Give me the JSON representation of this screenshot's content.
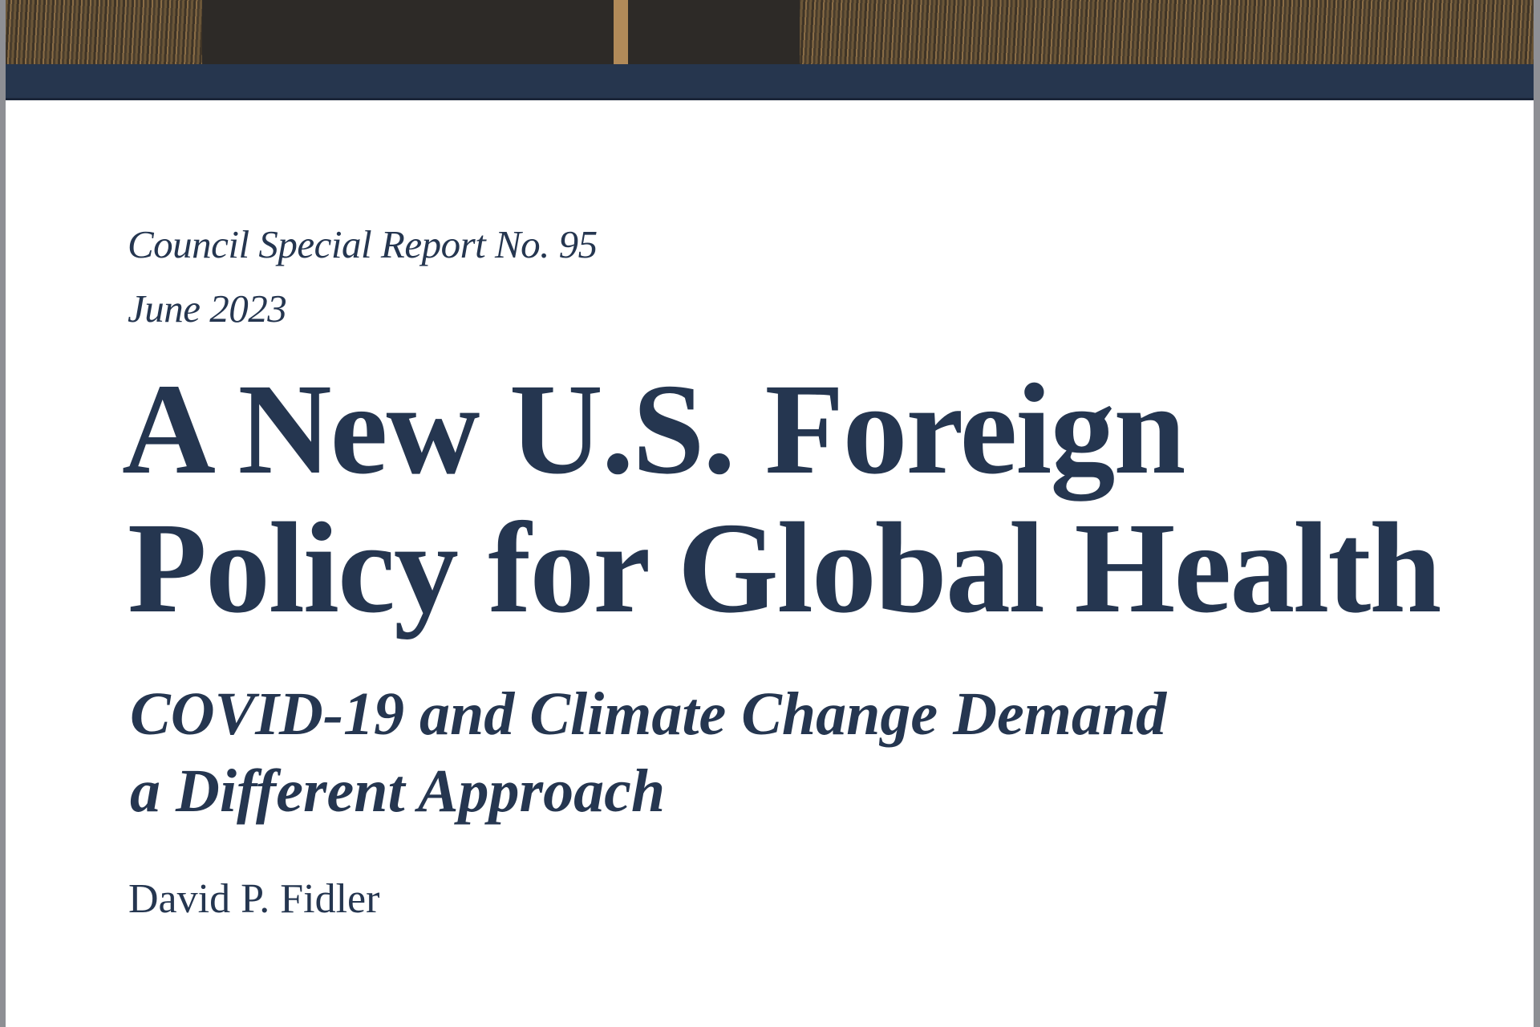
{
  "cover": {
    "series": "Council Special Report No. 95",
    "date": "June 2023",
    "title_line1": "A New U.S. Foreign",
    "title_line2": "Policy for Global Health",
    "subtitle_line1": "COVID-19 and Climate Change Demand",
    "subtitle_line2": "a Different Approach",
    "author": "David P. Fidler"
  },
  "colors": {
    "navy": "#253650",
    "band": "#26364e",
    "frame": "#8e8f94"
  }
}
